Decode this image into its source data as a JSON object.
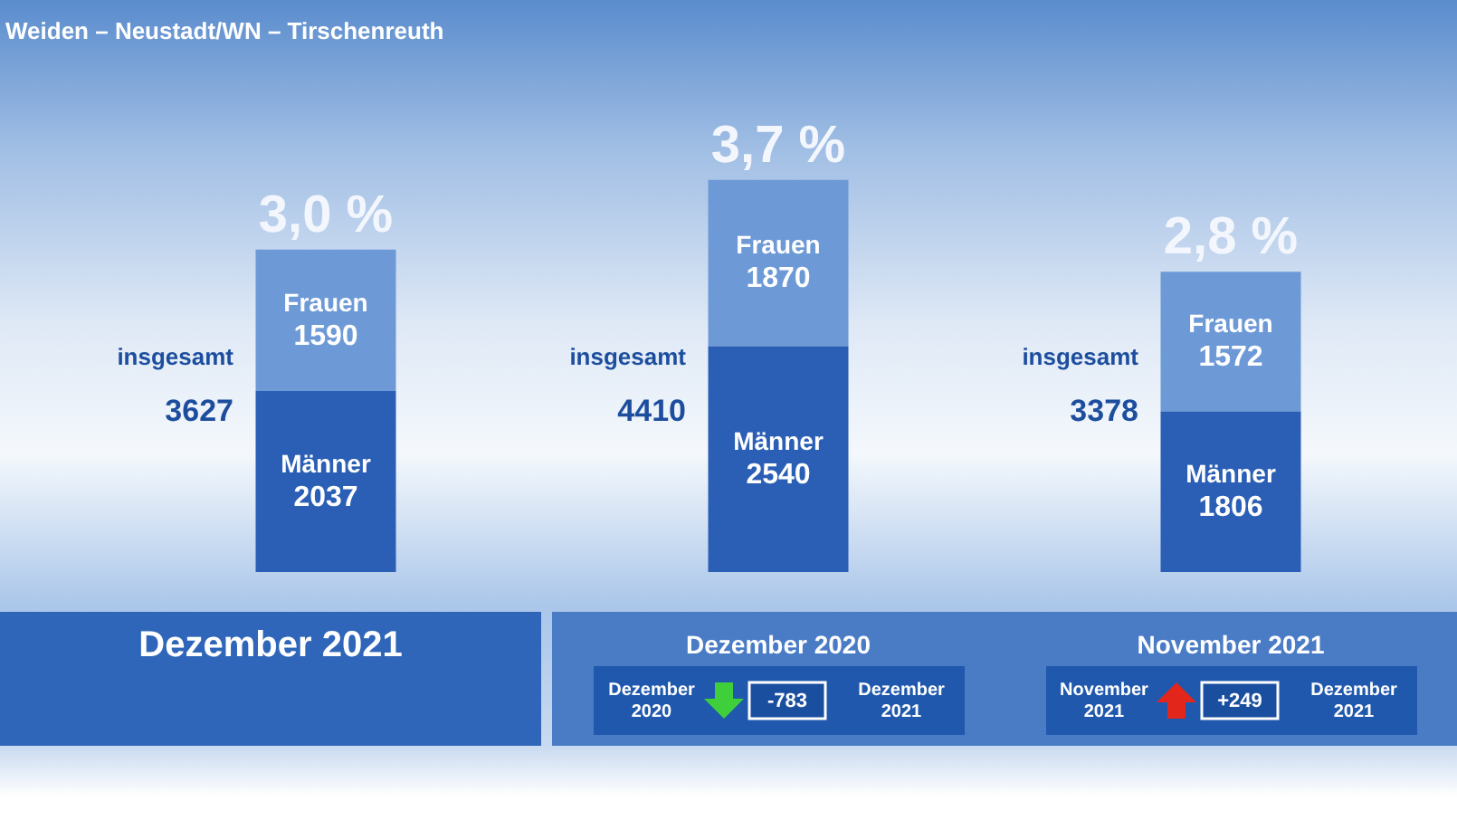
{
  "chart_data": {
    "type": "bar",
    "title": "Weiden – Neustadt/WN – Tirschenreuth",
    "categories": [
      "Dezember 2021",
      "Dezember 2020",
      "November 2021"
    ],
    "series": [
      {
        "name": "Männer",
        "color": "#2b5fb5",
        "values": [
          2037,
          2540,
          1806
        ]
      },
      {
        "name": "Frauen",
        "color": "#6d9ad6",
        "values": [
          1590,
          1870,
          1572
        ]
      }
    ],
    "stacked": true,
    "data_labels": true,
    "totals": [
      "3627",
      "4410",
      "3378"
    ],
    "legend": false,
    "annotations": [
      {
        "text": "3,0 %",
        "x": "Dezember 2021",
        "y": 3627
      },
      {
        "text": "3,7 %",
        "x": "Dezember 2020",
        "y": 4410
      },
      {
        "text": "2,8 %",
        "x": "November 2021",
        "y": 3378
      },
      "insgesamt",
      "insgesamt",
      "insgesamt",
      "Dezember 2020",
      "-783",
      "Dezember 2021",
      "November 2021",
      "+249",
      "Dezember 2021"
    ]
  }
}
